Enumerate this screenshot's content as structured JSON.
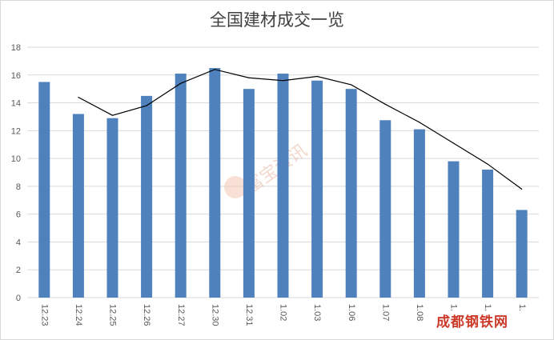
{
  "chart_data": {
    "type": "bar",
    "title": "全国建材成交一览",
    "categories": [
      "12.23",
      "12.24",
      "12.25",
      "12.26",
      "12.27",
      "12.30",
      "12.31",
      "1.02",
      "1.03",
      "1.06",
      "1.07",
      "1.08",
      "1.",
      "1.",
      "1."
    ],
    "series": [
      {
        "type": "bar",
        "values": [
          15.5,
          13.2,
          12.9,
          14.5,
          16.1,
          16.5,
          15.0,
          16.1,
          15.6,
          15.0,
          12.75,
          12.1,
          9.8,
          9.2,
          6.3
        ]
      },
      {
        "type": "line",
        "values": [
          null,
          14.4,
          13.1,
          13.8,
          15.4,
          16.4,
          15.8,
          15.6,
          15.9,
          15.3,
          13.9,
          12.6,
          11.1,
          9.6,
          7.8
        ]
      }
    ],
    "ylim": [
      0,
      18
    ],
    "yticks": [
      0,
      2,
      4,
      6,
      8,
      10,
      12,
      14,
      16,
      18
    ],
    "grid": true,
    "legend": "none",
    "colors": {
      "bar": "#4f81bd",
      "line": "#000000",
      "grid": "#d9d9d9",
      "axis_text": "#595959"
    }
  },
  "watermark": {
    "text": "富宝资讯"
  },
  "corner_logo": {
    "text": "成都钢铁网"
  }
}
